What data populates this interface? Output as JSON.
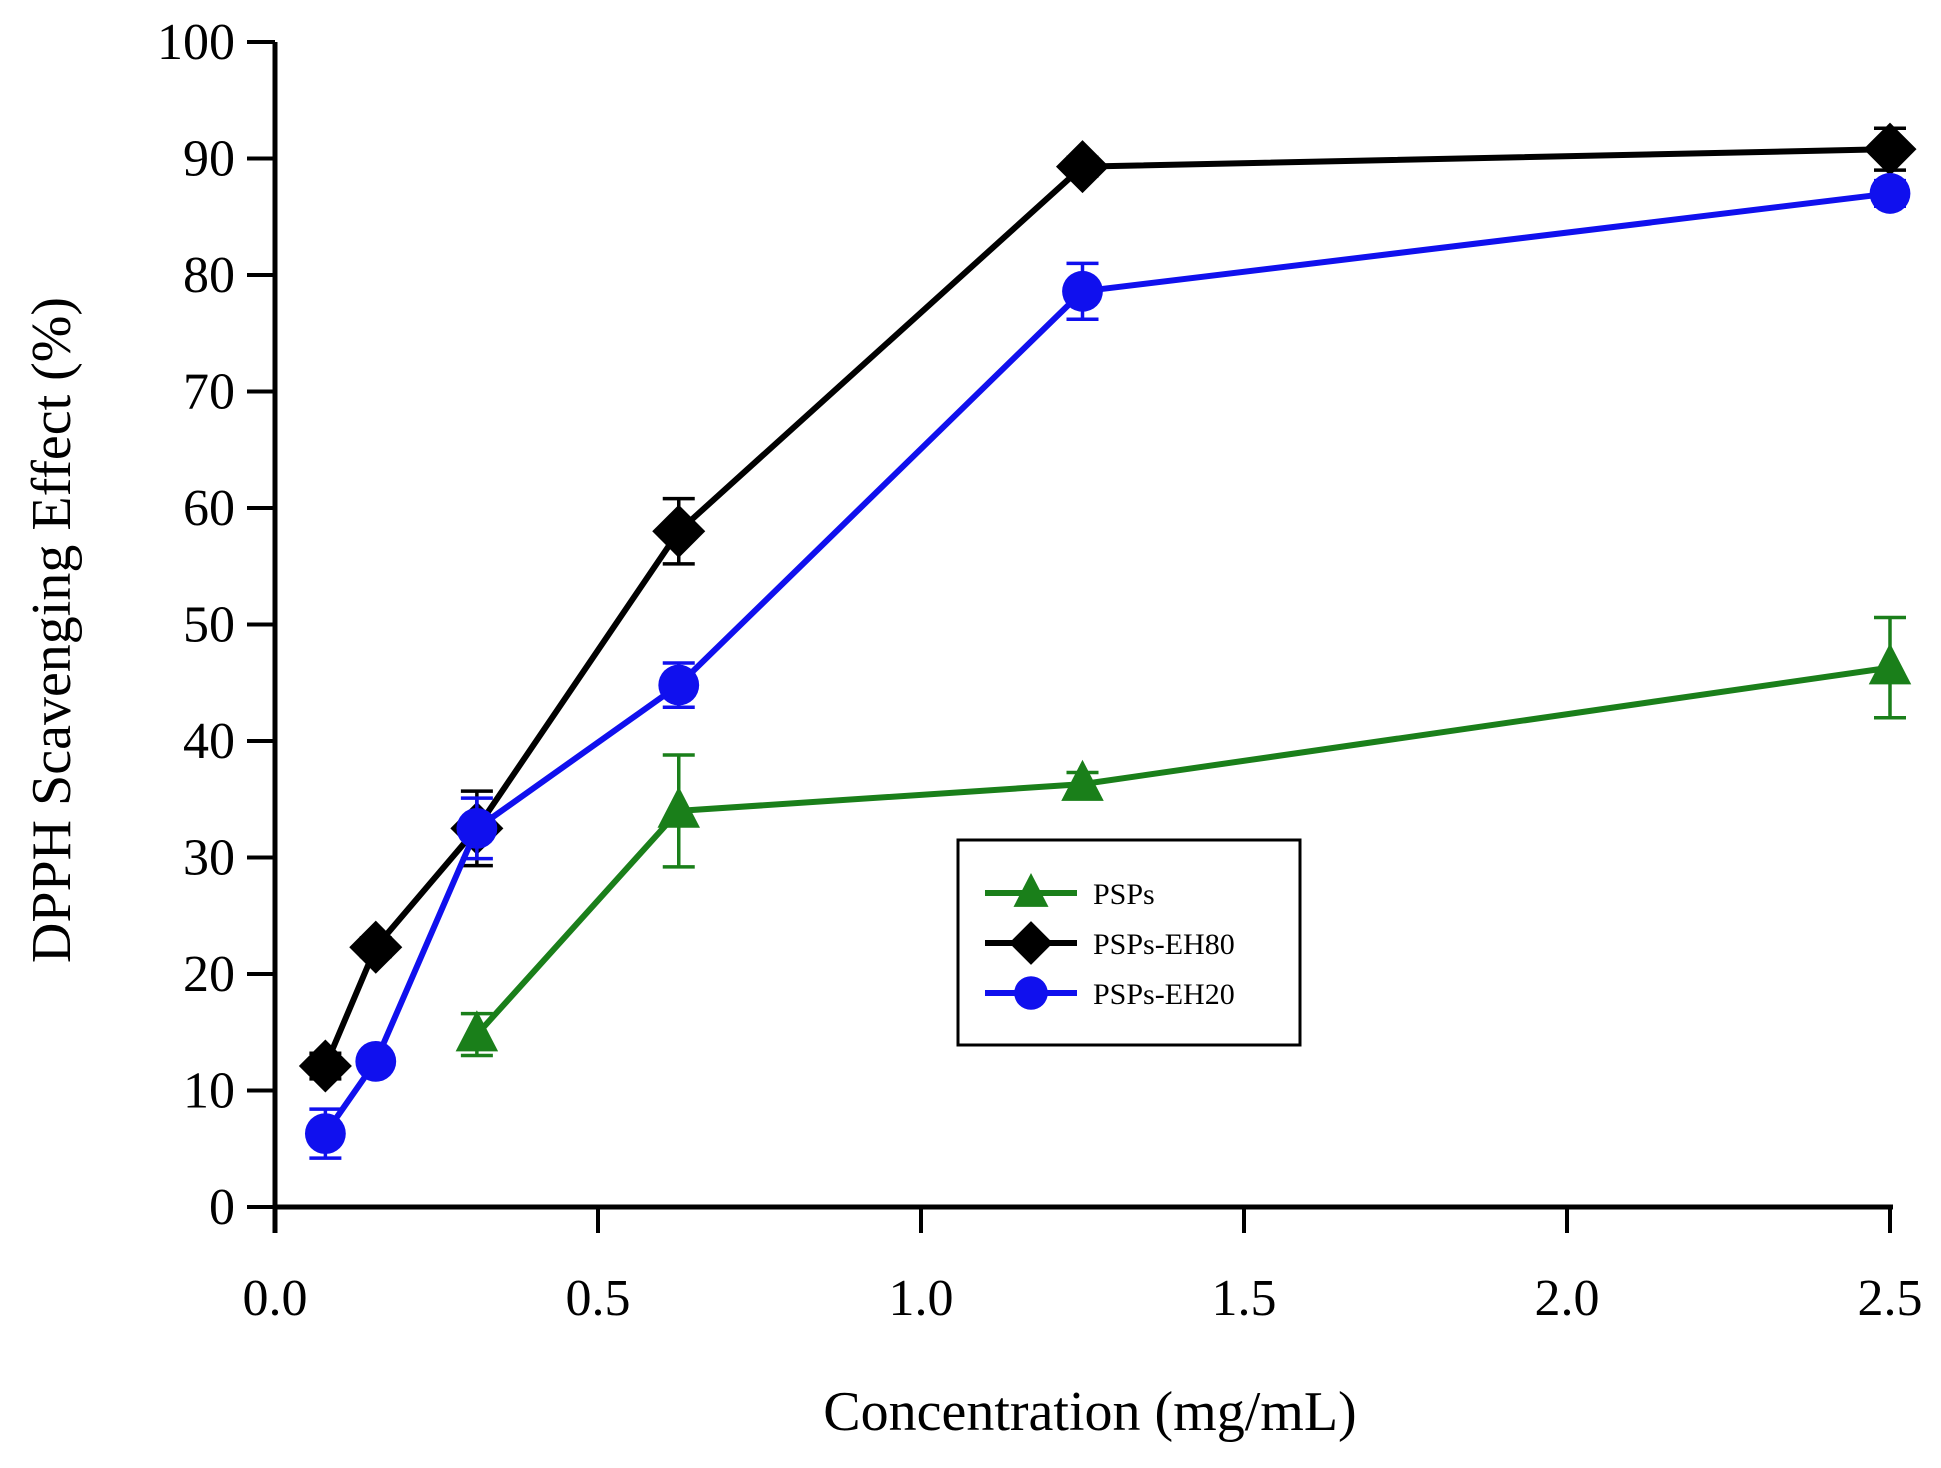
{
  "chart_data": {
    "type": "line",
    "title": "",
    "xlabel": "Concentration (mg/mL)",
    "ylabel": "DPPH Scavenging Effect (%)",
    "xlim": [
      0,
      2.5
    ],
    "ylim": [
      0,
      100
    ],
    "x_ticks": [
      0.0,
      0.5,
      1.0,
      1.5,
      2.0,
      2.5
    ],
    "x_tick_labels": [
      "0.0",
      "0.5",
      "1.0",
      "1.5",
      "2.0",
      "2.5"
    ],
    "y_ticks": [
      0,
      10,
      20,
      30,
      40,
      50,
      60,
      70,
      80,
      90,
      100
    ],
    "y_tick_labels": [
      "0",
      "10",
      "20",
      "30",
      "40",
      "50",
      "60",
      "70",
      "80",
      "90",
      "100"
    ],
    "grid": false,
    "legend_position": "center-right",
    "series": [
      {
        "name": "PSPs",
        "color": "#1a7f1a",
        "marker": "triangle",
        "x": [
          0.3125,
          0.625,
          1.25,
          2.5
        ],
        "y": [
          14.8,
          34.0,
          36.3,
          46.3
        ],
        "err": [
          1.8,
          4.8,
          1.0,
          4.3
        ]
      },
      {
        "name": "PSPs-EH80",
        "color": "#000000",
        "marker": "diamond",
        "x": [
          0.078,
          0.156,
          0.3125,
          0.625,
          1.25,
          2.5
        ],
        "y": [
          12.1,
          22.3,
          32.5,
          58.0,
          89.3,
          90.8
        ],
        "err": [
          1.1,
          0.8,
          3.2,
          2.8,
          0.8,
          1.8
        ]
      },
      {
        "name": "PSPs-EH20",
        "color": "#1010ee",
        "marker": "circle",
        "x": [
          0.078,
          0.156,
          0.3125,
          0.625,
          1.25,
          2.5
        ],
        "y": [
          6.3,
          12.5,
          32.5,
          44.8,
          78.6,
          87.0
        ],
        "err": [
          2.1,
          0.7,
          2.6,
          1.9,
          2.4,
          1.1
        ]
      }
    ]
  }
}
